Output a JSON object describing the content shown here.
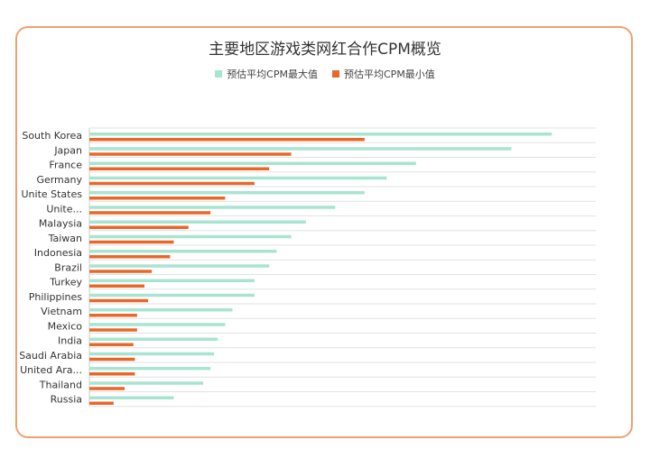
{
  "chart_data": {
    "type": "bar",
    "orientation": "horizontal",
    "title": "主要地区游戏类网红合作CPM概览",
    "categories": [
      "South Korea",
      "Japan",
      "France",
      "Germany",
      "Unite States",
      "Unite...",
      "Malaysia",
      "Taiwan",
      "Indonesia",
      "Brazil",
      "Turkey",
      "Philippines",
      "Vietnam",
      "Mexico",
      "India",
      "Saudi Arabia",
      "United Ara...",
      "Thailand",
      "Russia"
    ],
    "series": [
      {
        "name": "预估平均CPM最大值",
        "color": "#a8e4d2",
        "values": [
          63,
          57.5,
          44.5,
          40.5,
          37.5,
          33.5,
          29.5,
          27.5,
          25.5,
          24.5,
          22.5,
          22.5,
          19.5,
          18.5,
          17.5,
          17,
          16.5,
          15.5,
          11.5
        ]
      },
      {
        "name": "预估平均CPM最小值",
        "color": "#e8682a",
        "values": [
          37.5,
          27.5,
          24.5,
          22.5,
          18.5,
          16.5,
          13.5,
          11.5,
          11,
          8.5,
          7.5,
          8,
          6.5,
          6.5,
          6,
          6.2,
          6.2,
          4.8,
          3.3
        ]
      }
    ],
    "xlim": [
      0,
      69
    ],
    "grid": true,
    "legend_position": "top"
  }
}
